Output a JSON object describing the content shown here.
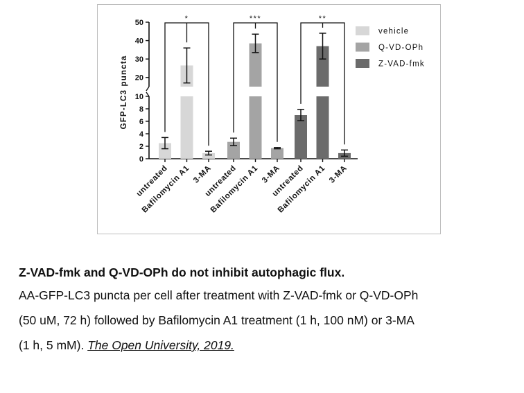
{
  "chart_data": {
    "type": "bar",
    "ylabel": "GFP-LC3 puncta",
    "y_axis_break": [
      10,
      15
    ],
    "ylim": [
      0,
      50
    ],
    "yticks_lower": [
      "0",
      "2",
      "4",
      "6",
      "8",
      "10"
    ],
    "yticks_upper": [
      "20",
      "30",
      "40",
      "50"
    ],
    "legend_position": "right",
    "categories": [
      "untreated",
      "Bafilomycin A1",
      "3-MA"
    ],
    "series": [
      {
        "name": "vehicle",
        "color": "#d7d7d7",
        "values": [
          2.5,
          26.5,
          0.9
        ],
        "errors": [
          0.9,
          9.5,
          0.3
        ],
        "significance": "*"
      },
      {
        "name": "Q-VD-OPh",
        "color": "#a4a4a4",
        "values": [
          2.7,
          38.5,
          1.7
        ],
        "errors": [
          0.6,
          5.0,
          0.1
        ],
        "significance": "***"
      },
      {
        "name": "Z-VAD-fmk",
        "color": "#6b6b6b",
        "values": [
          7.0,
          37.0,
          0.9
        ],
        "errors": [
          0.9,
          7.0,
          0.5
        ],
        "significance": "**"
      }
    ]
  },
  "caption": {
    "title": "Z-VAD-fmk and Q-VD-OPh do not inhibit autophagic flux.",
    "line1": "AA-GFP-LC3 puncta per cell after treatment with Z-VAD-fmk or Q-VD-OPh",
    "line2": "(50 uM, 72 h) followed by Bafilomycin A1 treatment (1 h, 100 nM) or 3-MA",
    "line3_prefix": "(1 h, 5 mM). ",
    "link_text": "The Open University, 2019."
  }
}
